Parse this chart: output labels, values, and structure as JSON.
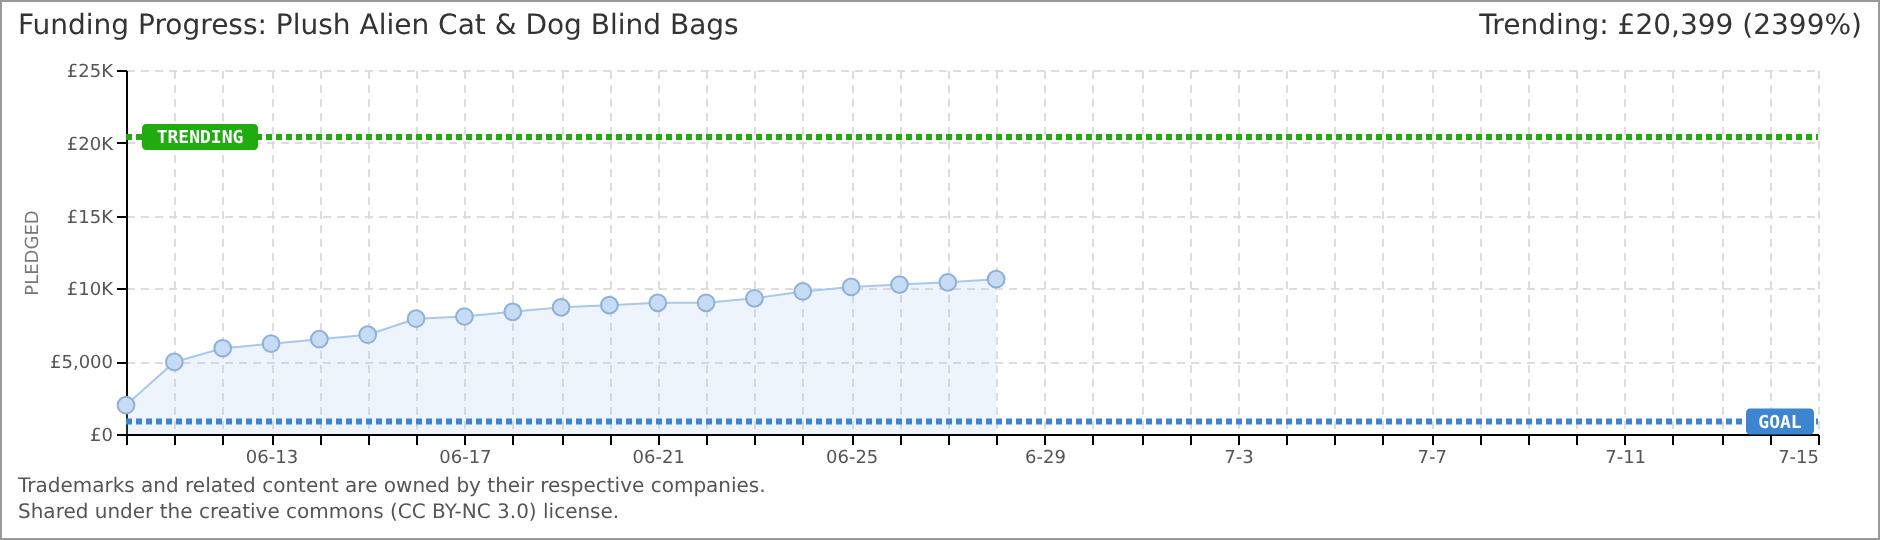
{
  "chart_data": {
    "type": "area",
    "title": "Funding Progress: Plush Alien Cat & Dog Blind Bags",
    "ylabel": "PLEDGED",
    "annotations": [
      "Trending:  £20,399 (2399%)",
      "Trademarks and related content are owned by their respective companies.",
      "Shared under the creative commons (CC BY-NC 3.0) license."
    ],
    "x": [
      "--06-10",
      "--06-11",
      "--06-12",
      "--06-13",
      "--06-14",
      "--06-15",
      "--06-16",
      "--06-17",
      "--06-18",
      "--06-19",
      "--06-20",
      "--06-21",
      "--06-22",
      "--06-23",
      "--06-24",
      "--06-25",
      "--06-26",
      "--06-27",
      "--06-28"
    ],
    "series": [
      {
        "color": "#a8c8ec",
        "values": [
          1980,
          4950,
          5890,
          6200,
          6510,
          6820,
          7920,
          8070,
          8390,
          8700,
          8850,
          9010,
          9010,
          9320,
          9790,
          10100,
          10260,
          10420,
          10630
        ]
      }
    ],
    "marker": "circle",
    "grid": true,
    "xlim": [
      "--06-10",
      "--07-15"
    ],
    "xticks": [
      {
        "value": "--06-10",
        "label": null
      },
      {
        "value": "--06-11",
        "label": null
      },
      {
        "value": "--06-12",
        "label": null
      },
      {
        "value": "--06-13",
        "label": "06-13"
      },
      {
        "value": "--06-14",
        "label": null
      },
      {
        "value": "--06-15",
        "label": null
      },
      {
        "value": "--06-16",
        "label": null
      },
      {
        "value": "--06-17",
        "label": "06-17"
      },
      {
        "value": "--06-18",
        "label": null
      },
      {
        "value": "--06-19",
        "label": null
      },
      {
        "value": "--06-20",
        "label": null
      },
      {
        "value": "--06-21",
        "label": "06-21"
      },
      {
        "value": "--06-22",
        "label": null
      },
      {
        "value": "--06-23",
        "label": null
      },
      {
        "value": "--06-24",
        "label": null
      },
      {
        "value": "--06-25",
        "label": "06-25"
      },
      {
        "value": "--06-26",
        "label": null
      },
      {
        "value": "--06-27",
        "label": null
      },
      {
        "value": "--06-28",
        "label": null
      },
      {
        "value": "--06-29",
        "label": "6-29"
      },
      {
        "value": "--06-30",
        "label": null
      },
      {
        "value": "--07-01",
        "label": null
      },
      {
        "value": "--07-02",
        "label": null
      },
      {
        "value": "--07-03",
        "label": "7-3"
      },
      {
        "value": "--07-04",
        "label": null
      },
      {
        "value": "--07-05",
        "label": null
      },
      {
        "value": "--07-06",
        "label": null
      },
      {
        "value": "--07-07",
        "label": "7-7"
      },
      {
        "value": "--07-08",
        "label": null
      },
      {
        "value": "--07-09",
        "label": null
      },
      {
        "value": "--07-10",
        "label": null
      },
      {
        "value": "--07-11",
        "label": "7-11"
      },
      {
        "value": "--07-12",
        "label": null
      },
      {
        "value": "--07-13",
        "label": null
      },
      {
        "value": "--07-14",
        "label": null
      },
      {
        "value": "--07-15",
        "label": "7-15"
      }
    ],
    "ylim": [
      0,
      25000
    ],
    "yticks": [
      {
        "value": 0,
        "label": "£0"
      },
      {
        "value": 5000,
        "label": "£5,000"
      },
      {
        "value": 10000,
        "label": "£10K"
      },
      {
        "value": 15000,
        "label": "£15K"
      },
      {
        "value": 20000,
        "label": "£20K"
      },
      {
        "value": 25000,
        "label": "£25K"
      }
    ],
    "ref_lines": [
      {
        "axis": "y",
        "value": 20399,
        "label": "TRENDING",
        "color": "#22aa11",
        "line_style": "dotted"
      },
      {
        "axis": "y",
        "value": 850,
        "label": "GOAL",
        "color": "#3d85d0",
        "line_style": "dotted"
      }
    ]
  }
}
